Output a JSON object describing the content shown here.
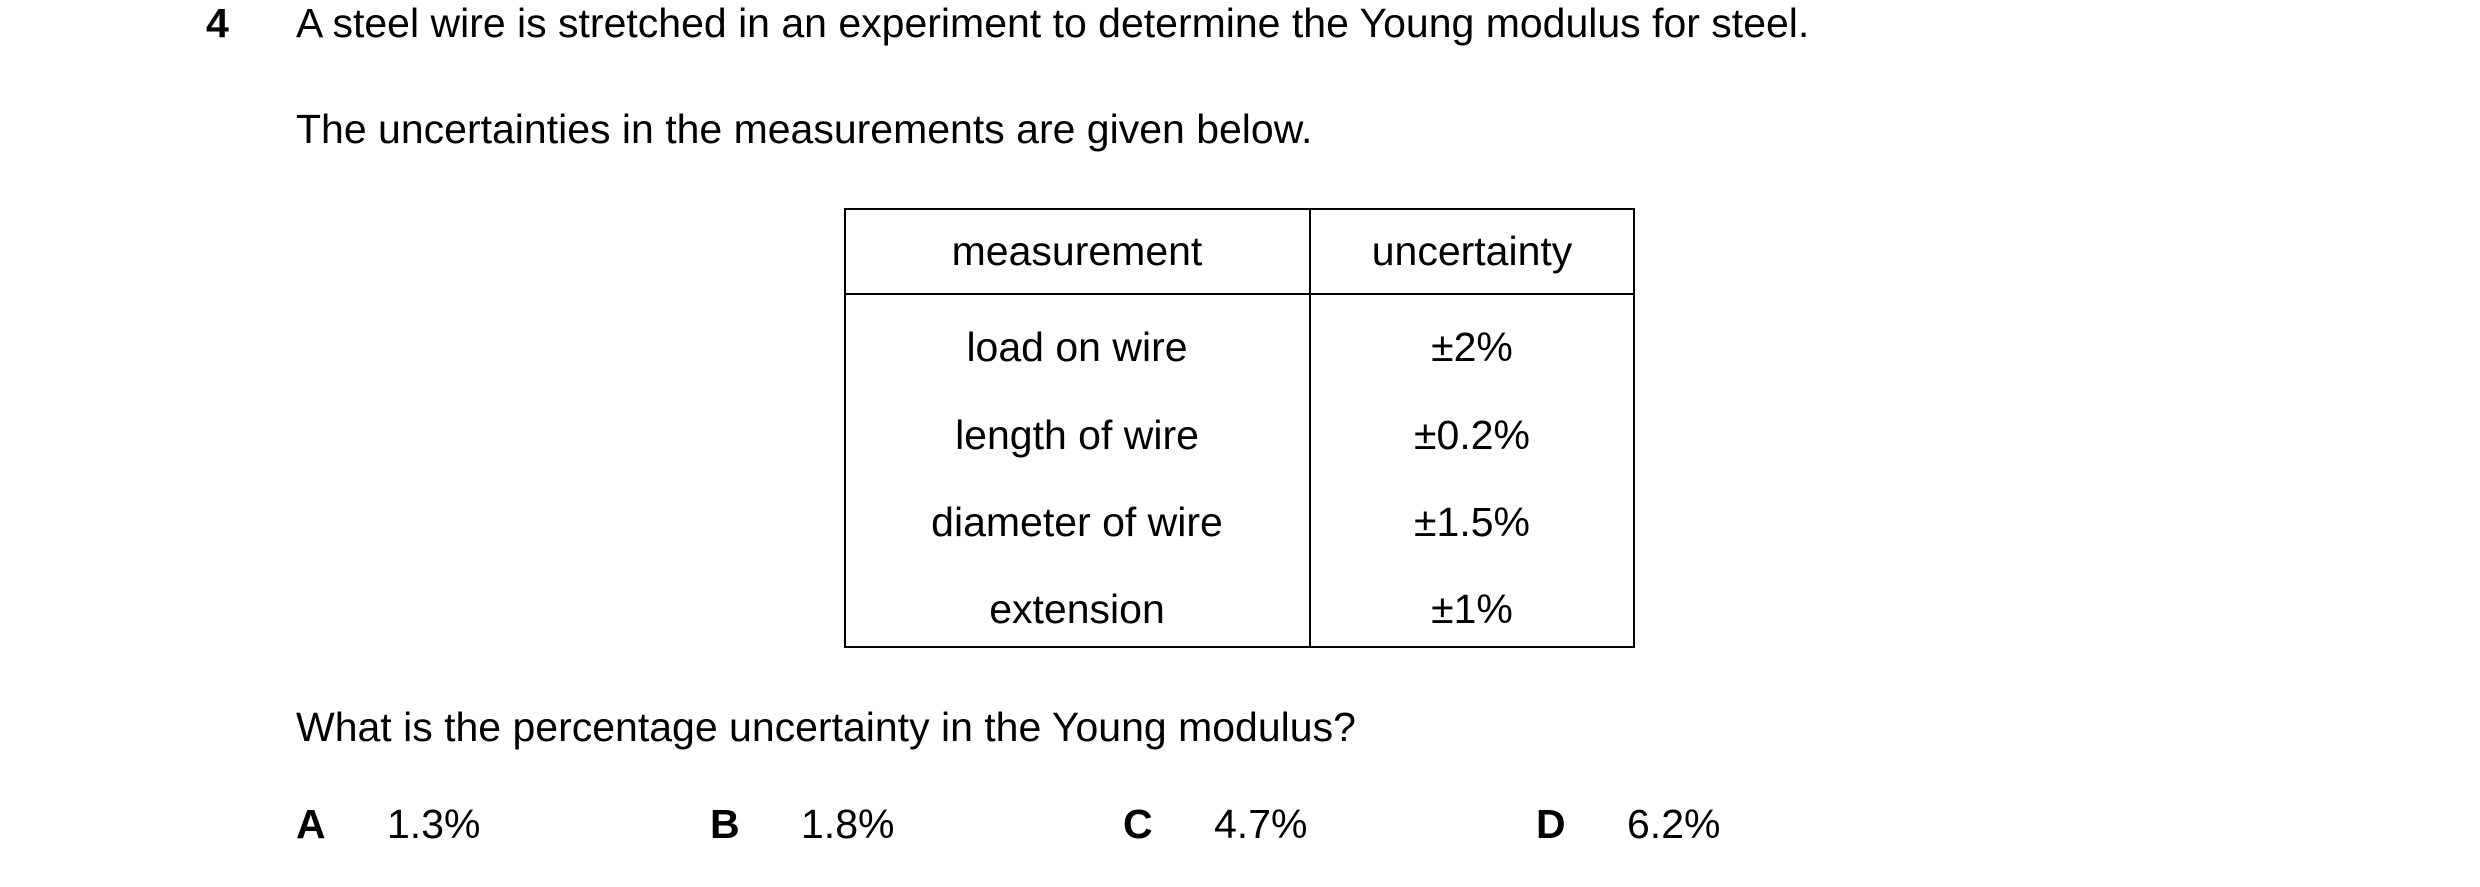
{
  "question": {
    "number": "4",
    "stem": "A steel wire is stretched in an experiment to determine the Young modulus for steel.",
    "intro": "The uncertainties in the measurements are given below.",
    "table": {
      "headers": [
        "measurement",
        "uncertainty"
      ],
      "rows": [
        [
          "load on wire",
          "±2%"
        ],
        [
          "length of wire",
          "±0.2%"
        ],
        [
          "diameter of wire",
          "±1.5%"
        ],
        [
          "extension",
          "±1%"
        ]
      ]
    },
    "prompt": "What is the percentage uncertainty in the Young modulus?",
    "options": [
      {
        "letter": "A",
        "text": "1.3%"
      },
      {
        "letter": "B",
        "text": "1.8%"
      },
      {
        "letter": "C",
        "text": "4.7%"
      },
      {
        "letter": "D",
        "text": "6.2%"
      }
    ]
  }
}
